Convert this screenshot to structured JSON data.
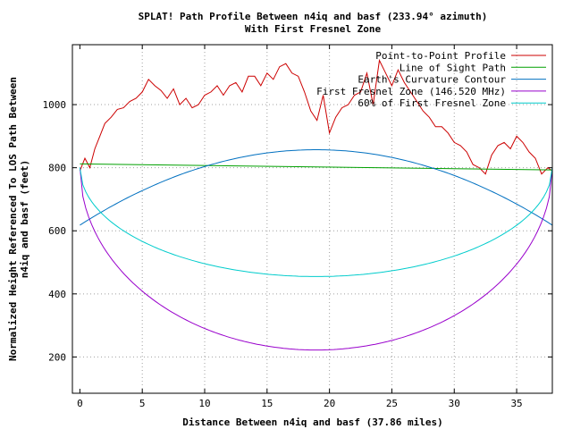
{
  "chart_data": {
    "type": "line",
    "title_line1": "SPLAT! Path Profile Between n4iq and basf (233.94° azimuth)",
    "title_line2": "With First Fresnel Zone",
    "xlabel": "Distance Between n4iq and basf (37.86 miles)",
    "ylabel_line1": "Normalized Height Referenced To LOS Path Between",
    "ylabel_line2": "n4iq and basf (feet)",
    "xlim": [
      -0.6,
      37.86
    ],
    "ylim": [
      85,
      1190
    ],
    "x_ticks": [
      0,
      5,
      10,
      15,
      20,
      25,
      30,
      35
    ],
    "y_ticks": [
      200,
      400,
      600,
      800,
      1000
    ],
    "grid": true,
    "legend_position": "top-right",
    "series": [
      {
        "name": "Point-to-Point Profile",
        "color": "#cc0000",
        "x": [
          0,
          0.4,
          0.8,
          1.2,
          1.6,
          2.0,
          2.5,
          3.0,
          3.5,
          4.0,
          4.5,
          5.0,
          5.5,
          6.0,
          6.5,
          7.0,
          7.5,
          8.0,
          8.5,
          9.0,
          9.5,
          10.0,
          10.5,
          11.0,
          11.5,
          12.0,
          12.5,
          13.0,
          13.5,
          14.0,
          14.5,
          15.0,
          15.5,
          16.0,
          16.5,
          17.0,
          17.5,
          18.0,
          18.5,
          19.0,
          19.5,
          20.0,
          20.5,
          21.0,
          21.5,
          22.0,
          22.5,
          23.0,
          23.5,
          24.0,
          24.5,
          25.0,
          25.5,
          26.0,
          26.5,
          27.0,
          27.5,
          28.0,
          28.5,
          29.0,
          29.5,
          30.0,
          30.5,
          31.0,
          31.5,
          32.0,
          32.5,
          33.0,
          33.5,
          34.0,
          34.5,
          35.0,
          35.5,
          36.0,
          36.5,
          37.0,
          37.5,
          37.86
        ],
        "values": [
          790,
          830,
          800,
          860,
          900,
          940,
          960,
          985,
          990,
          1010,
          1020,
          1040,
          1080,
          1060,
          1045,
          1020,
          1050,
          1000,
          1020,
          990,
          1000,
          1030,
          1040,
          1060,
          1030,
          1060,
          1070,
          1040,
          1090,
          1090,
          1060,
          1100,
          1080,
          1120,
          1130,
          1100,
          1090,
          1040,
          980,
          950,
          1030,
          910,
          960,
          990,
          1000,
          1030,
          1040,
          1100,
          1000,
          1140,
          1100,
          1060,
          1110,
          1070,
          1040,
          1010,
          980,
          960,
          930,
          930,
          910,
          880,
          870,
          850,
          810,
          800,
          780,
          840,
          870,
          880,
          860,
          900,
          880,
          850,
          830,
          780,
          800,
          790
        ]
      },
      {
        "name": "Line of Sight Path",
        "color": "#00a000",
        "x": [
          0,
          37.86
        ],
        "values": [
          812,
          793
        ]
      },
      {
        "name": "Earth's Curvature Contour",
        "color": "#0070c0",
        "shape": "parabola",
        "x_range": [
          0,
          37.86
        ],
        "end_value": 618,
        "peak_value": 857
      },
      {
        "name": "First Fresnel Zone (146.520 MHz)",
        "color": "#9900cc",
        "shape": "fresnel",
        "x_range": [
          0,
          37.86
        ],
        "end_value": 800,
        "min_value": 222
      },
      {
        "name": "60% of First Fresnel Zone",
        "color": "#00cccc",
        "shape": "fresnel",
        "x_range": [
          0,
          37.86
        ],
        "end_value": 800,
        "min_value": 455
      }
    ]
  }
}
